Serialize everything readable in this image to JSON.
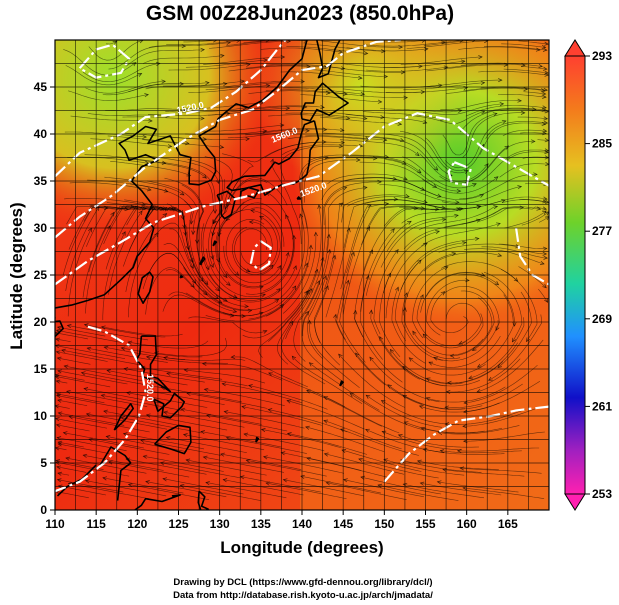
{
  "title": "GSM 00Z28Jun2023 (850.0hPa)",
  "xlabel": "Longitude (degrees)",
  "ylabel": "Latitude  (degrees)",
  "credits": {
    "line1": "Drawing by DCL (https://www.gfd-dennou.org/library/dcl/)",
    "line2": "Data from http://database.rish.kyoto-u.ac.jp/arch/jmadata/"
  },
  "chart_data": {
    "type": "heatmap",
    "xlim": [
      110,
      170
    ],
    "ylim": [
      0,
      50
    ],
    "x_ticks": [
      110,
      115,
      120,
      125,
      130,
      135,
      140,
      145,
      150,
      155,
      160,
      165
    ],
    "y_ticks": [
      0,
      5,
      10,
      15,
      20,
      25,
      30,
      35,
      40,
      45
    ],
    "grid": true,
    "colorbar": {
      "min": 253,
      "max": 293,
      "labels": [
        293,
        285,
        277,
        269,
        261,
        253
      ],
      "position": "right"
    },
    "contour_labels": [
      {
        "text": "1520.0",
        "lon": 126.5,
        "lat": 42.5,
        "angle": -12
      },
      {
        "text": "1560.0",
        "lon": 138.0,
        "lat": 39.6,
        "angle": -22
      },
      {
        "text": "1520.0",
        "lon": 141.5,
        "lat": 33.8,
        "angle": -20
      },
      {
        "text": "1520.0",
        "lon": 121.2,
        "lat": 13.0,
        "angle": 90
      }
    ]
  },
  "colors": {
    "warm_red": "#ee2a10",
    "orange": "#f47a1c",
    "yellow_green": "#c8e020",
    "green": "#6ed22a",
    "contour": "#ffffff",
    "coastline": "#000000"
  }
}
